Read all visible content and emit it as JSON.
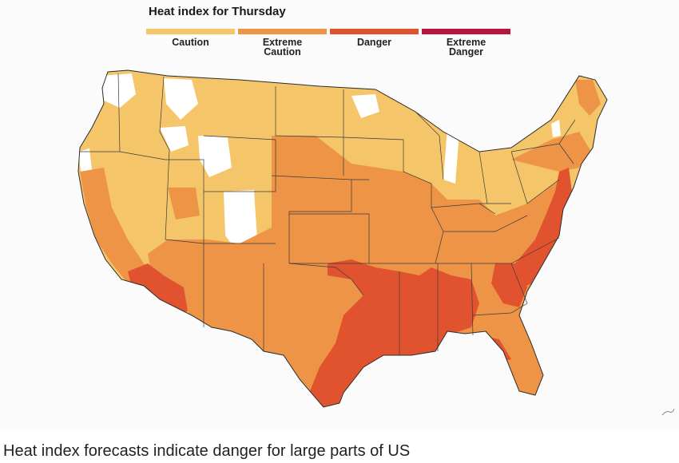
{
  "map": {
    "title": "Heat index for Thursday",
    "legend": [
      {
        "label": "Caution",
        "color": "#f5c56a"
      },
      {
        "label": "Extreme\nCaution",
        "color": "#ee9446"
      },
      {
        "label": "Danger",
        "color": "#e0532e"
      },
      {
        "label": "Extreme\nDanger",
        "color": "#b8173b"
      }
    ],
    "colors": {
      "none": "#ffffff",
      "caution": "#f5c56a",
      "extreme_caution": "#ee9446",
      "danger": "#e0532e",
      "outline": "#2b2b2b"
    }
  },
  "caption": "Heat index forecasts indicate danger for large parts of US"
}
